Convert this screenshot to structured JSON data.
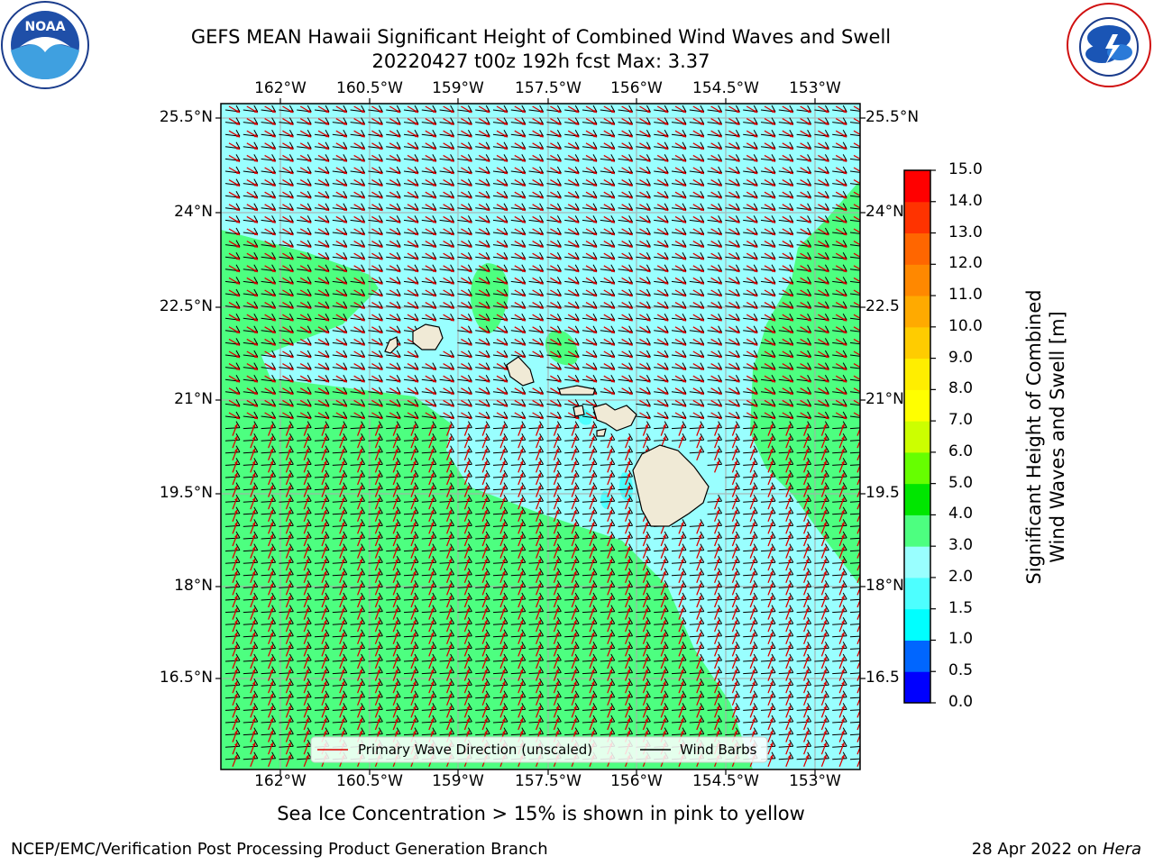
{
  "header": {
    "title_line1": "GEFS MEAN Hawaii Significant Height of Combined Wind Waves and Swell",
    "title_line2": "20220427 t00z 192h fcst   Max: 3.37"
  },
  "logos": {
    "left": "NOAA",
    "left_ring_text": "NATIONAL OCEANIC AND ATMOSPHERIC ADMINISTRATION · U.S. DEPARTMENT OF COMMERCE",
    "right_ring_text": "NATIONAL WEATHER SERVICE"
  },
  "map": {
    "lon_ticks": [
      "162°W",
      "160.5°W",
      "159°W",
      "157.5°W",
      "156°W",
      "154.5°W",
      "153°W"
    ],
    "lat_ticks": [
      "25.5°N",
      "24°N",
      "22.5°N",
      "21°N",
      "19.5°N",
      "18°N",
      "16.5°N"
    ],
    "lat_ticks_right": [
      "25.5°N",
      "24°N",
      "22.5",
      "21°N",
      "19.5",
      "18°N",
      "16.5"
    ],
    "legend": {
      "wave_dir": "Primary Wave Direction (unscaled)",
      "wind_barbs": "Wind Barbs"
    },
    "colors": {
      "light_cyan": "#99ffff",
      "green": "#4dff80",
      "land": "#f0ead6",
      "wave_arrow": "#dd0000",
      "barb": "#000000"
    }
  },
  "colorbar": {
    "label_line1": "Significant Height of Combined",
    "label_line2": "Wind Waves and Swell [m]",
    "ticks": [
      "0.0",
      "0.5",
      "1.0",
      "1.5",
      "2.0",
      "3.0",
      "4.0",
      "5.0",
      "6.0",
      "7.0",
      "8.0",
      "9.0",
      "10.0",
      "11.0",
      "12.0",
      "13.0",
      "14.0",
      "15.0"
    ],
    "colors": [
      "#0000ff",
      "#0066ff",
      "#00ffff",
      "#4dffff",
      "#99ffff",
      "#4dff80",
      "#00e600",
      "#66ff00",
      "#ccff00",
      "#ffff00",
      "#ffee00",
      "#ffcc00",
      "#ffaa00",
      "#ff8800",
      "#ff6600",
      "#ff3300",
      "#ff0000"
    ]
  },
  "footer": {
    "note": "Sea Ice Concentration > 15% is shown in pink to yellow",
    "credit": "NCEP/EMC/Verification Post Processing Product Generation Branch",
    "date": "28 Apr 2022 on ",
    "machine": "Hera"
  }
}
